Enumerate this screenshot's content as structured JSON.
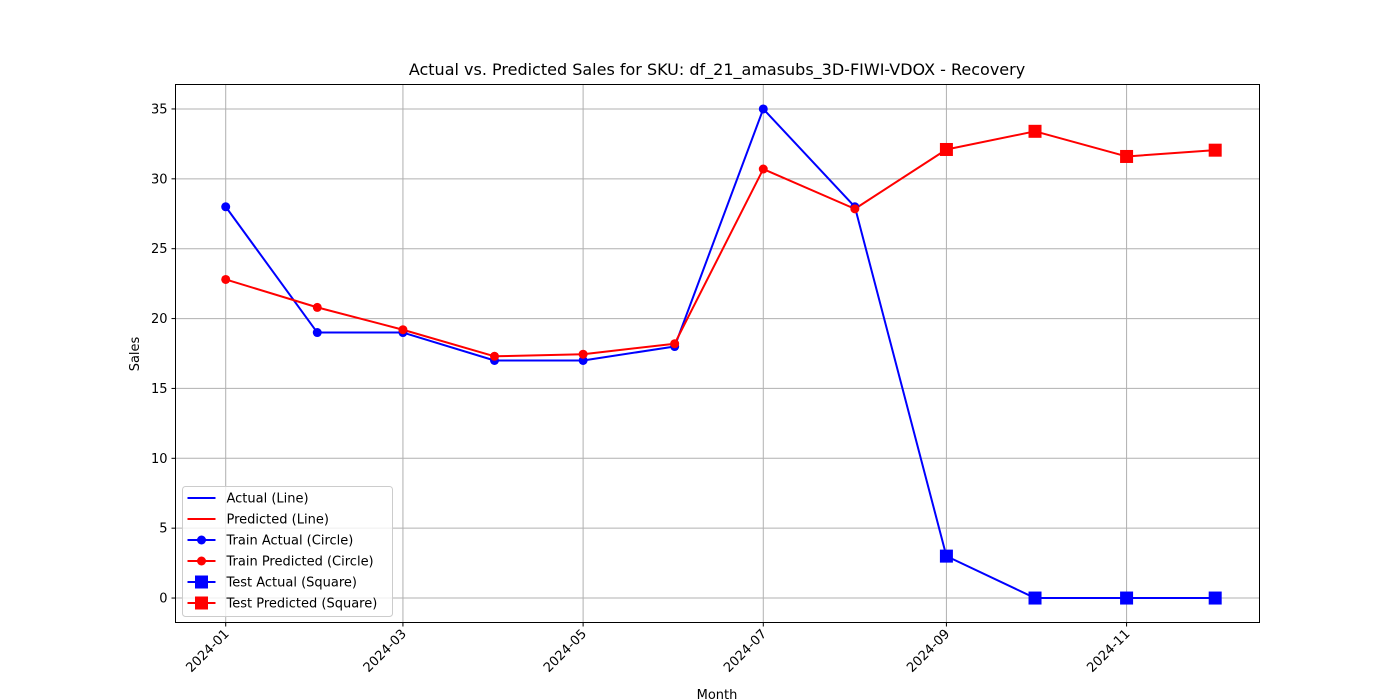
{
  "chart_data": {
    "type": "line",
    "title": "Actual vs. Predicted Sales for SKU: df_21_amasubs_3D-FIWI-VDOX - Recovery",
    "xlabel": "Month",
    "ylabel": "Sales",
    "x_ticks": [
      "2024-01",
      "2024-03",
      "2024-05",
      "2024-07",
      "2024-09",
      "2024-11"
    ],
    "y_ticks": [
      0,
      5,
      10,
      15,
      20,
      25,
      30,
      35
    ],
    "ylim": [
      -1.75,
      36.75
    ],
    "xlim": [
      "2023-12-15",
      "2024-12-16"
    ],
    "grid": true,
    "legend_position": "lower-left",
    "colors": {
      "actual": "#0000ff",
      "predicted": "#ff0000"
    },
    "series": [
      {
        "name": "Train Actual (Circle)",
        "line_name": "Actual (Line)",
        "marker": "circle",
        "color": "#0000ff",
        "points": [
          {
            "x": "2024-01-01",
            "y": 28
          },
          {
            "x": "2024-02-01",
            "y": 19
          },
          {
            "x": "2024-03-01",
            "y": 19
          },
          {
            "x": "2024-04-01",
            "y": 17
          },
          {
            "x": "2024-05-01",
            "y": 17
          },
          {
            "x": "2024-06-01",
            "y": 18
          },
          {
            "x": "2024-07-01",
            "y": 35
          },
          {
            "x": "2024-08-01",
            "y": 28
          }
        ]
      },
      {
        "name": "Train Predicted (Circle)",
        "line_name": "Predicted (Line)",
        "marker": "circle",
        "color": "#ff0000",
        "points": [
          {
            "x": "2024-01-01",
            "y": 22.8
          },
          {
            "x": "2024-02-01",
            "y": 20.8
          },
          {
            "x": "2024-03-01",
            "y": 19.2
          },
          {
            "x": "2024-04-01",
            "y": 17.3
          },
          {
            "x": "2024-05-01",
            "y": 17.45
          },
          {
            "x": "2024-06-01",
            "y": 18.2
          },
          {
            "x": "2024-07-01",
            "y": 30.7
          },
          {
            "x": "2024-08-01",
            "y": 27.85
          }
        ]
      },
      {
        "name": "Test Actual (Square)",
        "marker": "square",
        "color": "#0000ff",
        "points": [
          {
            "x": "2024-09-01",
            "y": 3
          },
          {
            "x": "2024-10-01",
            "y": 0
          },
          {
            "x": "2024-11-01",
            "y": 0
          },
          {
            "x": "2024-12-01",
            "y": 0
          }
        ]
      },
      {
        "name": "Test Predicted (Square)",
        "marker": "square",
        "color": "#ff0000",
        "points": [
          {
            "x": "2024-09-01",
            "y": 32.1
          },
          {
            "x": "2024-10-01",
            "y": 33.4
          },
          {
            "x": "2024-11-01",
            "y": 31.6
          },
          {
            "x": "2024-12-01",
            "y": 32.05
          }
        ]
      }
    ],
    "legend": [
      {
        "label": "Actual (Line)",
        "color": "#0000ff",
        "marker": "none"
      },
      {
        "label": "Predicted (Line)",
        "color": "#ff0000",
        "marker": "none"
      },
      {
        "label": "Train Actual (Circle)",
        "color": "#0000ff",
        "marker": "circle"
      },
      {
        "label": "Train Predicted (Circle)",
        "color": "#ff0000",
        "marker": "circle"
      },
      {
        "label": "Test Actual (Square)",
        "color": "#0000ff",
        "marker": "square"
      },
      {
        "label": "Test Predicted (Square)",
        "color": "#ff0000",
        "marker": "square"
      }
    ]
  }
}
